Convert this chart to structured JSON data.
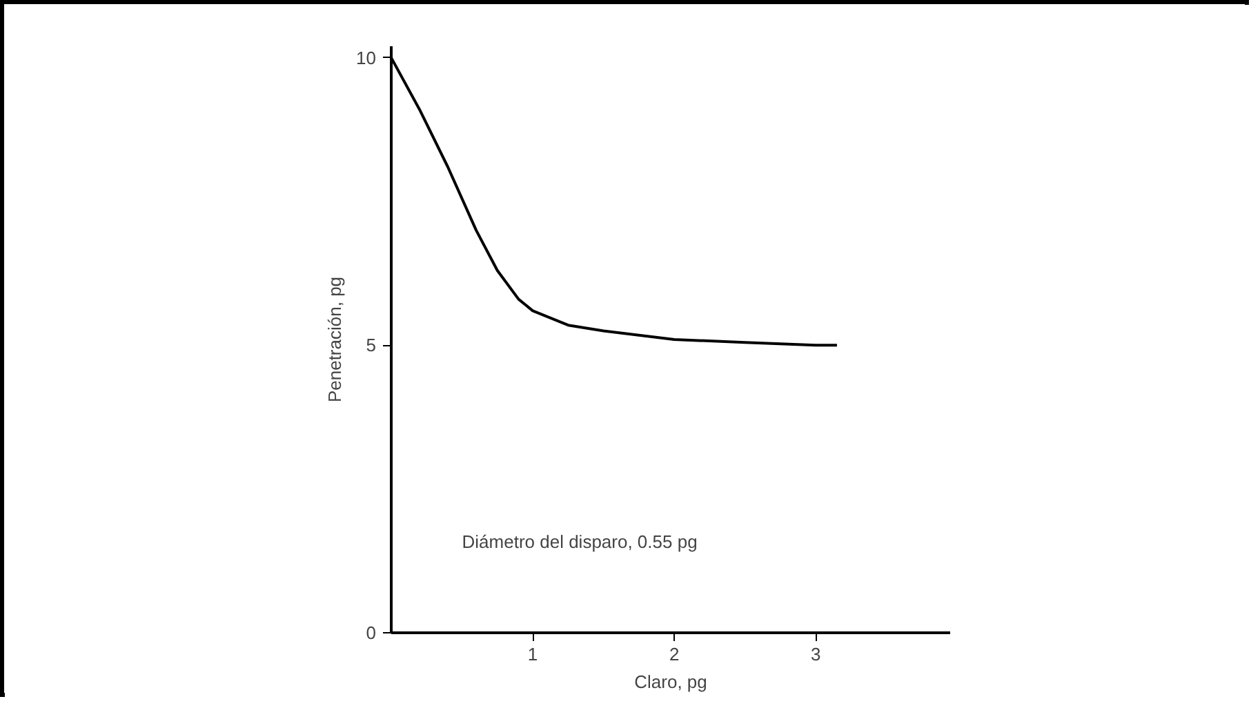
{
  "chart_data": {
    "type": "line",
    "xlabel": "Claro, pg",
    "ylabel": "Penetración, pg",
    "annotations": [
      "Diámetro del disparo, 0.55 pg"
    ],
    "x": [
      0,
      0.2,
      0.4,
      0.6,
      0.75,
      0.9,
      1,
      1.25,
      1.5,
      2,
      2.5,
      3,
      3.15
    ],
    "series": [
      {
        "color": "#000000",
        "values": [
          10,
          9.1,
          8.1,
          7.0,
          6.3,
          5.8,
          5.6,
          5.35,
          5.25,
          5.1,
          5.05,
          5.0,
          5.0
        ]
      }
    ],
    "xlim": [
      0,
      3.95
    ],
    "ylim": [
      0,
      10.2
    ],
    "xticks": [
      1,
      2,
      3
    ],
    "yticks": [
      0,
      5,
      10
    ],
    "grid": false,
    "line_style": "solid"
  }
}
